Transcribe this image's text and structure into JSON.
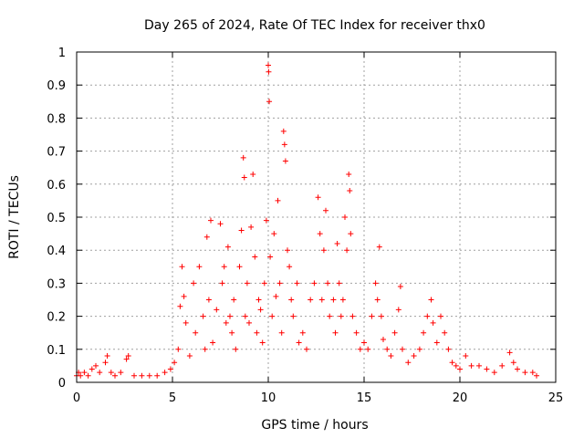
{
  "chart_data": {
    "type": "scatter",
    "title": "Day 265 of 2024, Rate Of TEC Index for receiver thx0",
    "xlabel": "GPS time / hours",
    "ylabel": "ROTI / TECUs",
    "xlim": [
      0,
      25
    ],
    "ylim": [
      0,
      1
    ],
    "xticks": [
      0,
      5,
      10,
      15,
      20,
      25
    ],
    "xtick_labels": [
      "0",
      "5",
      "10",
      "15",
      "20",
      "25"
    ],
    "yticks": [
      0,
      0.1,
      0.2,
      0.3,
      0.4,
      0.5,
      0.6,
      0.7,
      0.8,
      0.9,
      1
    ],
    "ytick_labels": [
      "0",
      "0.1",
      "0.2",
      "0.3",
      "0.4",
      "0.5",
      "0.6",
      "0.7",
      "0.8",
      "0.9",
      "1"
    ],
    "grid": true,
    "marker": "+",
    "color": "#ff0000",
    "series": [
      {
        "points": [
          [
            0.0,
            0.02
          ],
          [
            0.1,
            0.03
          ],
          [
            0.2,
            0.02
          ],
          [
            0.4,
            0.03
          ],
          [
            0.6,
            0.02
          ],
          [
            0.8,
            0.04
          ],
          [
            1.0,
            0.05
          ],
          [
            1.2,
            0.03
          ],
          [
            1.5,
            0.06
          ],
          [
            1.6,
            0.08
          ],
          [
            1.8,
            0.03
          ],
          [
            2.0,
            0.02
          ],
          [
            2.3,
            0.03
          ],
          [
            2.6,
            0.07
          ],
          [
            2.7,
            0.08
          ],
          [
            3.0,
            0.02
          ],
          [
            3.4,
            0.02
          ],
          [
            3.8,
            0.02
          ],
          [
            4.2,
            0.02
          ],
          [
            4.6,
            0.03
          ],
          [
            4.9,
            0.04
          ],
          [
            5.1,
            0.06
          ],
          [
            5.3,
            0.1
          ],
          [
            5.4,
            0.23
          ],
          [
            5.5,
            0.35
          ],
          [
            5.6,
            0.26
          ],
          [
            5.7,
            0.18
          ],
          [
            5.9,
            0.08
          ],
          [
            6.1,
            0.3
          ],
          [
            6.2,
            0.15
          ],
          [
            6.4,
            0.35
          ],
          [
            6.6,
            0.2
          ],
          [
            6.7,
            0.1
          ],
          [
            6.8,
            0.44
          ],
          [
            6.9,
            0.25
          ],
          [
            7.0,
            0.49
          ],
          [
            7.1,
            0.12
          ],
          [
            7.3,
            0.22
          ],
          [
            7.5,
            0.48
          ],
          [
            7.6,
            0.3
          ],
          [
            7.7,
            0.35
          ],
          [
            7.8,
            0.18
          ],
          [
            7.9,
            0.41
          ],
          [
            8.0,
            0.2
          ],
          [
            8.1,
            0.15
          ],
          [
            8.2,
            0.25
          ],
          [
            8.3,
            0.1
          ],
          [
            8.5,
            0.35
          ],
          [
            8.6,
            0.46
          ],
          [
            8.7,
            0.68
          ],
          [
            8.75,
            0.62
          ],
          [
            8.8,
            0.2
          ],
          [
            8.9,
            0.3
          ],
          [
            9.0,
            0.18
          ],
          [
            9.1,
            0.47
          ],
          [
            9.2,
            0.63
          ],
          [
            9.3,
            0.38
          ],
          [
            9.4,
            0.15
          ],
          [
            9.5,
            0.25
          ],
          [
            9.6,
            0.22
          ],
          [
            9.7,
            0.12
          ],
          [
            9.8,
            0.3
          ],
          [
            9.9,
            0.49
          ],
          [
            10.0,
            0.96
          ],
          [
            10.02,
            0.94
          ],
          [
            10.05,
            0.85
          ],
          [
            10.1,
            0.38
          ],
          [
            10.2,
            0.2
          ],
          [
            10.3,
            0.45
          ],
          [
            10.4,
            0.26
          ],
          [
            10.5,
            0.55
          ],
          [
            10.6,
            0.3
          ],
          [
            10.7,
            0.15
          ],
          [
            10.8,
            0.76
          ],
          [
            10.85,
            0.72
          ],
          [
            10.9,
            0.67
          ],
          [
            11.0,
            0.4
          ],
          [
            11.1,
            0.35
          ],
          [
            11.2,
            0.25
          ],
          [
            11.3,
            0.2
          ],
          [
            11.5,
            0.3
          ],
          [
            11.6,
            0.12
          ],
          [
            11.8,
            0.15
          ],
          [
            12.0,
            0.1
          ],
          [
            12.2,
            0.25
          ],
          [
            12.4,
            0.3
          ],
          [
            12.6,
            0.56
          ],
          [
            12.7,
            0.45
          ],
          [
            12.8,
            0.25
          ],
          [
            12.9,
            0.4
          ],
          [
            13.0,
            0.52
          ],
          [
            13.1,
            0.3
          ],
          [
            13.2,
            0.2
          ],
          [
            13.4,
            0.25
          ],
          [
            13.5,
            0.15
          ],
          [
            13.6,
            0.42
          ],
          [
            13.7,
            0.3
          ],
          [
            13.8,
            0.2
          ],
          [
            13.9,
            0.25
          ],
          [
            14.0,
            0.5
          ],
          [
            14.1,
            0.4
          ],
          [
            14.2,
            0.63
          ],
          [
            14.25,
            0.58
          ],
          [
            14.3,
            0.45
          ],
          [
            14.4,
            0.2
          ],
          [
            14.6,
            0.15
          ],
          [
            14.8,
            0.1
          ],
          [
            15.0,
            0.12
          ],
          [
            15.2,
            0.1
          ],
          [
            15.4,
            0.2
          ],
          [
            15.6,
            0.3
          ],
          [
            15.7,
            0.25
          ],
          [
            15.8,
            0.41
          ],
          [
            15.9,
            0.2
          ],
          [
            16.0,
            0.13
          ],
          [
            16.2,
            0.1
          ],
          [
            16.4,
            0.08
          ],
          [
            16.6,
            0.15
          ],
          [
            16.8,
            0.22
          ],
          [
            16.9,
            0.29
          ],
          [
            17.0,
            0.1
          ],
          [
            17.3,
            0.06
          ],
          [
            17.6,
            0.08
          ],
          [
            17.9,
            0.1
          ],
          [
            18.1,
            0.15
          ],
          [
            18.3,
            0.2
          ],
          [
            18.5,
            0.25
          ],
          [
            18.6,
            0.18
          ],
          [
            18.8,
            0.12
          ],
          [
            19.0,
            0.2
          ],
          [
            19.2,
            0.15
          ],
          [
            19.4,
            0.1
          ],
          [
            19.6,
            0.06
          ],
          [
            19.8,
            0.05
          ],
          [
            20.0,
            0.04
          ],
          [
            20.3,
            0.08
          ],
          [
            20.6,
            0.05
          ],
          [
            21.0,
            0.05
          ],
          [
            21.4,
            0.04
          ],
          [
            21.8,
            0.03
          ],
          [
            22.2,
            0.05
          ],
          [
            22.6,
            0.09
          ],
          [
            22.8,
            0.06
          ],
          [
            23.0,
            0.04
          ],
          [
            23.4,
            0.03
          ],
          [
            23.8,
            0.03
          ],
          [
            24.0,
            0.02
          ]
        ]
      }
    ]
  }
}
